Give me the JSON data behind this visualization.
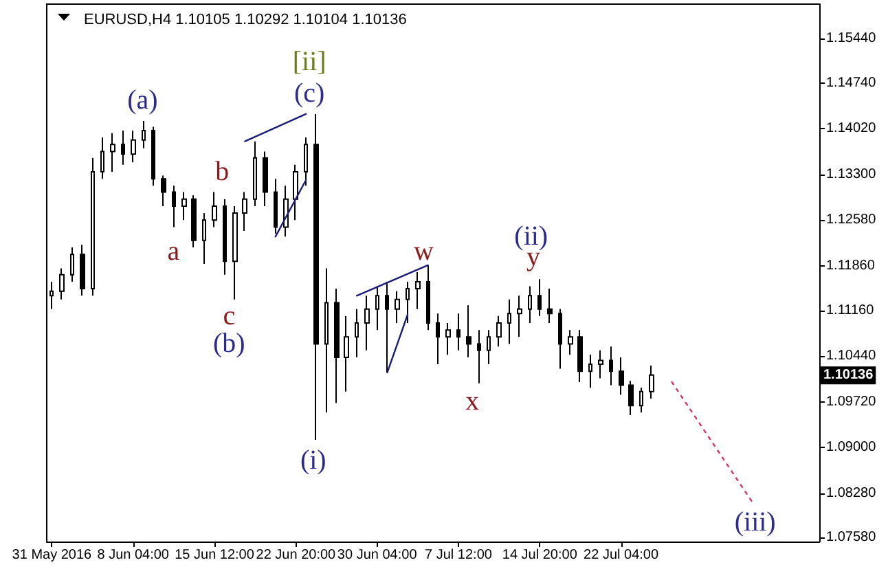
{
  "chart_data": {
    "type": "candlestick",
    "title": "EURUSD,H4 1.10105 1.10292 1.10104 1.10136",
    "categories": [
      "31 May 2016",
      null,
      null,
      null,
      null,
      null,
      null,
      null,
      "8 Jun 04:00",
      null,
      null,
      null,
      null,
      null,
      null,
      null,
      "15 Jun 12:00",
      null,
      null,
      null,
      null,
      null,
      null,
      null,
      "22 Jun 20:00",
      null,
      null,
      null,
      null,
      null,
      null,
      null,
      "30 Jun 04:00",
      null,
      null,
      null,
      null,
      null,
      null,
      null,
      "7 Jul 12:00",
      null,
      null,
      null,
      null,
      null,
      null,
      null,
      "14 Jul 20:00",
      null,
      null,
      null,
      null,
      null,
      null,
      null,
      "22 Jul 04:00",
      null,
      null,
      null,
      null,
      null,
      null,
      null,
      null,
      null,
      null,
      null,
      null,
      null,
      null,
      null,
      null,
      null,
      null,
      null
    ],
    "ylim": [
      1.0752,
      1.1598
    ],
    "yticks": [
      {
        "value": 1.0758,
        "label": "1.07580"
      },
      {
        "value": 1.0828,
        "label": "1.08280"
      },
      {
        "value": 1.09,
        "label": "1.09000"
      },
      {
        "value": 1.0972,
        "label": "1.09720"
      },
      {
        "value": 1.1044,
        "label": "1.10440"
      },
      {
        "value": 1.1116,
        "label": "1.11160"
      },
      {
        "value": 1.1186,
        "label": "1.11860"
      },
      {
        "value": 1.1258,
        "label": "1.12580"
      },
      {
        "value": 1.133,
        "label": "1.13300"
      },
      {
        "value": 1.1402,
        "label": "1.14020"
      },
      {
        "value": 1.1474,
        "label": "1.14740"
      },
      {
        "value": 1.1544,
        "label": "1.15440"
      }
    ],
    "grid": false,
    "series": [
      {
        "color": "#000000",
        "ohlc": [
          [
            1.1139,
            1.1161,
            1.1118,
            1.1146
          ],
          [
            1.1146,
            1.1182,
            1.1133,
            1.1172
          ],
          [
            1.1172,
            1.1215,
            1.1161,
            1.1204
          ],
          [
            1.1204,
            1.1219,
            1.1139,
            1.115
          ],
          [
            1.115,
            1.1356,
            1.1139,
            1.1334
          ],
          [
            1.1334,
            1.1388,
            1.1323,
            1.1366
          ],
          [
            1.1366,
            1.1395,
            1.1334,
            1.1377
          ],
          [
            1.1377,
            1.1399,
            1.1345,
            1.1362
          ],
          [
            1.1362,
            1.1399,
            1.1349,
            1.1384
          ],
          [
            1.1384,
            1.1414,
            1.1371,
            1.1399
          ],
          [
            1.1399,
            1.1405,
            1.1312,
            1.1323
          ],
          [
            1.1323,
            1.1328,
            1.128,
            1.1302
          ],
          [
            1.1302,
            1.1312,
            1.1247,
            1.128
          ],
          [
            1.128,
            1.1302,
            1.1258,
            1.1291
          ],
          [
            1.1291,
            1.1297,
            1.1215,
            1.1226
          ],
          [
            1.1226,
            1.1269,
            1.1189,
            1.1258
          ],
          [
            1.1258,
            1.1302,
            1.1247,
            1.128
          ],
          [
            1.128,
            1.1291,
            1.1172,
            1.1193
          ],
          [
            1.1193,
            1.128,
            1.1133,
            1.1269
          ],
          [
            1.1269,
            1.1302,
            1.1241,
            1.1291
          ],
          [
            1.1291,
            1.1382,
            1.128,
            1.1356
          ],
          [
            1.1356,
            1.1366,
            1.128,
            1.1302
          ],
          [
            1.1302,
            1.1323,
            1.1237,
            1.1247
          ],
          [
            1.1247,
            1.1312,
            1.1232,
            1.1291
          ],
          [
            1.1291,
            1.1345,
            1.1258,
            1.1334
          ],
          [
            1.1334,
            1.1388,
            1.1312,
            1.1377
          ],
          [
            1.1377,
            1.1425,
            1.0912,
            1.1063
          ],
          [
            1.1063,
            1.1182,
            1.0955,
            1.1128
          ],
          [
            1.1128,
            1.115,
            1.097,
            1.1042
          ],
          [
            1.1042,
            1.1107,
            1.0988,
            1.1074
          ],
          [
            1.1074,
            1.1118,
            1.1042,
            1.1096
          ],
          [
            1.1096,
            1.1139,
            1.1053,
            1.1118
          ],
          [
            1.1118,
            1.1154,
            1.1085,
            1.1139
          ],
          [
            1.1139,
            1.1161,
            1.1018,
            1.1118
          ],
          [
            1.1118,
            1.1146,
            1.1096,
            1.1133
          ],
          [
            1.1133,
            1.1161,
            1.1096,
            1.115
          ],
          [
            1.115,
            1.1176,
            1.1118,
            1.1161
          ],
          [
            1.1161,
            1.1187,
            1.1085,
            1.1096
          ],
          [
            1.1096,
            1.1111,
            1.1031,
            1.1074
          ],
          [
            1.1074,
            1.1096,
            1.1046,
            1.1085
          ],
          [
            1.1085,
            1.1111,
            1.1053,
            1.1074
          ],
          [
            1.1074,
            1.1124,
            1.1042,
            1.1063
          ],
          [
            1.1063,
            1.1085,
            1.1001,
            1.1053
          ],
          [
            1.1053,
            1.1085,
            1.1031,
            1.1074
          ],
          [
            1.1074,
            1.1107,
            1.1059,
            1.1096
          ],
          [
            1.1096,
            1.1133,
            1.1063,
            1.1111
          ],
          [
            1.1111,
            1.1139,
            1.1074,
            1.1118
          ],
          [
            1.1118,
            1.1154,
            1.1096,
            1.1139
          ],
          [
            1.1139,
            1.1165,
            1.1107,
            1.1118
          ],
          [
            1.1118,
            1.115,
            1.1096,
            1.1111
          ],
          [
            1.1111,
            1.1118,
            1.1024,
            1.1063
          ],
          [
            1.1063,
            1.1085,
            1.1046,
            1.1074
          ],
          [
            1.1074,
            1.1085,
            1.1003,
            1.102
          ],
          [
            1.102,
            1.1046,
            1.0994,
            1.1031
          ],
          [
            1.1031,
            1.1053,
            1.1009,
            1.1037
          ],
          [
            1.1037,
            1.1059,
            1.0998,
            1.102
          ],
          [
            1.102,
            1.1042,
            1.0983,
            1.0998
          ],
          [
            1.0998,
            1.1005,
            1.0951,
            1.0966
          ],
          [
            1.0966,
            1.0994,
            1.0955,
            1.0988
          ],
          [
            1.0988,
            1.1029,
            1.0977,
            1.1014
          ],
          null,
          null,
          null,
          null,
          null,
          null,
          null,
          null,
          null,
          null,
          null,
          null,
          null,
          null,
          null,
          null
        ]
      },
      {
        "type": "line",
        "color": "#1c1c7a",
        "values": [
          null,
          null,
          null,
          null,
          null,
          null,
          null,
          null,
          null,
          null,
          null,
          null,
          null,
          null,
          null,
          null,
          null,
          null,
          null,
          1.1382,
          null,
          null,
          null,
          null,
          null,
          1.1425,
          null,
          null,
          null,
          null,
          null,
          null,
          null,
          null,
          null,
          null,
          null,
          null,
          null,
          null,
          null,
          null,
          null,
          null,
          null,
          null,
          null,
          null,
          null,
          null,
          null,
          null,
          null,
          null,
          null,
          null,
          null,
          null,
          null,
          null,
          null,
          null,
          null,
          null,
          null,
          null,
          null,
          null,
          null,
          null,
          null,
          null,
          null,
          null,
          null,
          null
        ]
      },
      {
        "type": "line",
        "color": "#1c1c7a",
        "values": [
          null,
          null,
          null,
          null,
          null,
          null,
          null,
          null,
          null,
          null,
          null,
          null,
          null,
          null,
          null,
          null,
          null,
          null,
          null,
          null,
          null,
          null,
          1.1232,
          null,
          null,
          1.1321,
          null,
          null,
          null,
          null,
          null,
          null,
          null,
          null,
          null,
          null,
          null,
          null,
          null,
          null,
          null,
          null,
          null,
          null,
          null,
          null,
          null,
          null,
          null,
          null,
          null,
          null,
          null,
          null,
          null,
          null,
          null,
          null,
          null,
          null,
          null,
          null,
          null,
          null,
          null,
          null,
          null,
          null,
          null,
          null,
          null,
          null,
          null,
          null,
          null,
          null
        ]
      },
      {
        "type": "line",
        "color": "#1c1c7a",
        "values": [
          null,
          null,
          null,
          null,
          null,
          null,
          null,
          null,
          null,
          null,
          null,
          null,
          null,
          null,
          null,
          null,
          null,
          null,
          null,
          null,
          null,
          null,
          null,
          null,
          null,
          null,
          null,
          null,
          null,
          null,
          1.1139,
          null,
          null,
          null,
          null,
          null,
          null,
          1.1187,
          null,
          null,
          null,
          null,
          null,
          null,
          null,
          null,
          null,
          null,
          null,
          null,
          null,
          null,
          null,
          null,
          null,
          null,
          null,
          null,
          null,
          null,
          null,
          null,
          null,
          null,
          null,
          null,
          null,
          null,
          null,
          null,
          null,
          null,
          null,
          null,
          null,
          null
        ]
      },
      {
        "type": "line",
        "color": "#1c1c7a",
        "values": [
          null,
          null,
          null,
          null,
          null,
          null,
          null,
          null,
          null,
          null,
          null,
          null,
          null,
          null,
          null,
          null,
          null,
          null,
          null,
          null,
          null,
          null,
          null,
          null,
          null,
          null,
          null,
          null,
          null,
          null,
          null,
          null,
          null,
          1.1018,
          null,
          1.1109,
          null,
          null,
          null,
          null,
          null,
          null,
          null,
          null,
          null,
          null,
          null,
          null,
          null,
          null,
          null,
          null,
          null,
          null,
          null,
          null,
          null,
          null,
          null,
          null,
          null,
          null,
          null,
          null,
          null,
          null,
          null,
          null,
          null,
          null,
          null,
          null,
          null,
          null,
          null,
          null
        ]
      },
      {
        "type": "line",
        "color": "#e0306a",
        "line_style": "dotted",
        "values": [
          null,
          null,
          null,
          null,
          null,
          null,
          null,
          null,
          null,
          null,
          null,
          null,
          null,
          null,
          null,
          null,
          null,
          null,
          null,
          null,
          null,
          null,
          null,
          null,
          null,
          null,
          null,
          null,
          null,
          null,
          null,
          null,
          null,
          null,
          null,
          null,
          null,
          null,
          null,
          null,
          null,
          null,
          null,
          null,
          null,
          null,
          null,
          null,
          null,
          null,
          null,
          null,
          null,
          null,
          null,
          null,
          null,
          null,
          null,
          null,
          null,
          1.1003,
          null,
          null,
          null,
          null,
          null,
          null,
          null,
          1.0812,
          null,
          null,
          null,
          null,
          null,
          null
        ]
      }
    ],
    "annotations": [
      "(a)",
      "a",
      "b",
      "c",
      "(b)",
      "[ii]",
      "(c)",
      "(i)",
      "w",
      "x",
      "(ii)",
      "y",
      "(iii)",
      {
        "text": "1.10136",
        "y": 1.10136
      }
    ]
  }
}
